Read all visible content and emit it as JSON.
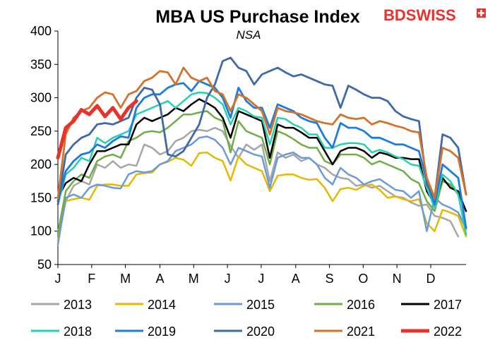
{
  "logo": {
    "part1": "BD",
    "part2": "SWISS",
    "color": "#e8322e"
  },
  "chart_data": {
    "type": "line",
    "title": "MBA US Purchase Index",
    "subtitle": "NSA",
    "xlabel": "",
    "ylabel": "",
    "ylim": [
      50,
      400
    ],
    "yticks": [
      50,
      100,
      150,
      200,
      250,
      300,
      350,
      400
    ],
    "xticks": [
      {
        "label": "J",
        "pos": 0
      },
      {
        "label": "F",
        "pos": 4.3
      },
      {
        "label": "M",
        "pos": 8.6
      },
      {
        "label": "A",
        "pos": 13
      },
      {
        "label": "M",
        "pos": 17.3
      },
      {
        "label": "J",
        "pos": 21.6
      },
      {
        "label": "J",
        "pos": 25.9
      },
      {
        "label": "A",
        "pos": 30.3
      },
      {
        "label": "S",
        "pos": 34.6
      },
      {
        "label": "O",
        "pos": 38.9
      },
      {
        "label": "N",
        "pos": 43.2
      },
      {
        "label": "D",
        "pos": 47.5
      }
    ],
    "x_range": [
      0,
      52
    ],
    "series": [
      {
        "name": "2013",
        "color": "#a6a6a6",
        "width": 2.5,
        "values": [
          95,
          145,
          168,
          175,
          170,
          200,
          195,
          205,
          195,
          200,
          198,
          230,
          225,
          215,
          220,
          235,
          240,
          250,
          252,
          250,
          255,
          250,
          228,
          210,
          230,
          222,
          230,
          175,
          218,
          210,
          215,
          205,
          210,
          200,
          195,
          185,
          180,
          178,
          168,
          170,
          165,
          168,
          160,
          152,
          150,
          143,
          138,
          140,
          123,
          120,
          115,
          92
        ]
      },
      {
        "name": "2014",
        "color": "#e6b800",
        "width": 2.5,
        "values": [
          85,
          145,
          148,
          150,
          147,
          168,
          170,
          170,
          168,
          168,
          185,
          187,
          188,
          200,
          204,
          210,
          207,
          198,
          217,
          218,
          210,
          205,
          176,
          212,
          200,
          195,
          190,
          160,
          183,
          185,
          185,
          180,
          177,
          178,
          165,
          145,
          163,
          165,
          162,
          168,
          170,
          162,
          150,
          152,
          148,
          145,
          148,
          112,
          100,
          132,
          128,
          123,
          92
        ]
      },
      {
        "name": "2015",
        "color": "#6a9bd8",
        "width": 2.5,
        "values": [
          80,
          150,
          155,
          150,
          165,
          170,
          168,
          165,
          164,
          185,
          190,
          188,
          190,
          200,
          205,
          220,
          225,
          230,
          240,
          242,
          237,
          225,
          200,
          225,
          220,
          215,
          212,
          165,
          210,
          215,
          218,
          210,
          210,
          200,
          180,
          170,
          195,
          185,
          180,
          170,
          175,
          178,
          170,
          162,
          160,
          150,
          160,
          100,
          150,
          140,
          135,
          128,
          103
        ]
      },
      {
        "name": "2016",
        "color": "#70ad47",
        "width": 2.5,
        "values": [
          97,
          160,
          175,
          185,
          180,
          205,
          212,
          215,
          210,
          235,
          240,
          248,
          250,
          248,
          255,
          265,
          275,
          275,
          278,
          280,
          270,
          265,
          218,
          265,
          250,
          245,
          240,
          200,
          250,
          245,
          238,
          230,
          225,
          225,
          205,
          200,
          215,
          215,
          215,
          210,
          200,
          205,
          200,
          195,
          190,
          178,
          172,
          145,
          130,
          175,
          170,
          155,
          130
        ]
      },
      {
        "name": "2017",
        "color": "#000000",
        "width": 2.5,
        "values": [
          150,
          172,
          180,
          175,
          200,
          220,
          220,
          225,
          230,
          230,
          260,
          270,
          265,
          270,
          275,
          285,
          280,
          290,
          298,
          292,
          285,
          270,
          240,
          280,
          275,
          270,
          265,
          210,
          260,
          255,
          255,
          248,
          240,
          240,
          220,
          200,
          220,
          225,
          225,
          220,
          210,
          218,
          215,
          210,
          210,
          208,
          208,
          160,
          140,
          180,
          165,
          160,
          130
        ]
      },
      {
        "name": "2018",
        "color": "#26d0b0",
        "width": 2.5,
        "values": [
          140,
          185,
          195,
          210,
          205,
          240,
          232,
          240,
          245,
          250,
          275,
          280,
          285,
          290,
          295,
          285,
          295,
          305,
          308,
          307,
          300,
          290,
          260,
          285,
          280,
          272,
          270,
          230,
          270,
          268,
          260,
          255,
          245,
          245,
          225,
          225,
          230,
          232,
          232,
          230,
          218,
          222,
          218,
          212,
          208,
          200,
          198,
          165,
          135,
          185,
          175,
          155,
          95
        ]
      },
      {
        "name": "2019",
        "color": "#1e7be0",
        "width": 2.8,
        "values": [
          145,
          190,
          205,
          215,
          218,
          230,
          225,
          235,
          242,
          240,
          285,
          300,
          305,
          305,
          315,
          320,
          322,
          310,
          325,
          320,
          315,
          300,
          270,
          315,
          295,
          285,
          285,
          255,
          290,
          285,
          280,
          270,
          265,
          262,
          240,
          225,
          262,
          255,
          255,
          250,
          240,
          240,
          235,
          230,
          230,
          225,
          220,
          175,
          140,
          200,
          190,
          180,
          105
        ]
      },
      {
        "name": "2020",
        "color": "#4169a8",
        "width": 2.8,
        "values": [
          140,
          215,
          230,
          240,
          245,
          260,
          262,
          260,
          265,
          270,
          300,
          315,
          312,
          290,
          215,
          212,
          220,
          240,
          260,
          300,
          320,
          355,
          360,
          345,
          340,
          320,
          335,
          340,
          345,
          338,
          332,
          335,
          330,
          325,
          320,
          318,
          285,
          318,
          312,
          305,
          300,
          300,
          295,
          280,
          272,
          268,
          265,
          170,
          150,
          245,
          240,
          225,
          155
        ]
      },
      {
        "name": "2021",
        "color": "#d4722a",
        "width": 2.8,
        "values": [
          150,
          245,
          270,
          280,
          285,
          300,
          308,
          305,
          285,
          305,
          310,
          325,
          330,
          340,
          338,
          320,
          345,
          330,
          325,
          330,
          310,
          305,
          280,
          305,
          300,
          290,
          280,
          245,
          285,
          280,
          278,
          275,
          270,
          265,
          262,
          260,
          275,
          270,
          268,
          270,
          260,
          265,
          262,
          258,
          255,
          250,
          248,
          180,
          150,
          225,
          220,
          210,
          155
        ]
      },
      {
        "name": "2022",
        "color": "#e8322e",
        "width": 5,
        "values": [
          210,
          255,
          265,
          282,
          275,
          288,
          272,
          285,
          268,
          285,
          295
        ]
      }
    ],
    "legend": [
      [
        "2013",
        "2014",
        "2015",
        "2016",
        "2017"
      ],
      [
        "2018",
        "2019",
        "2020",
        "2021",
        "2022"
      ]
    ]
  }
}
